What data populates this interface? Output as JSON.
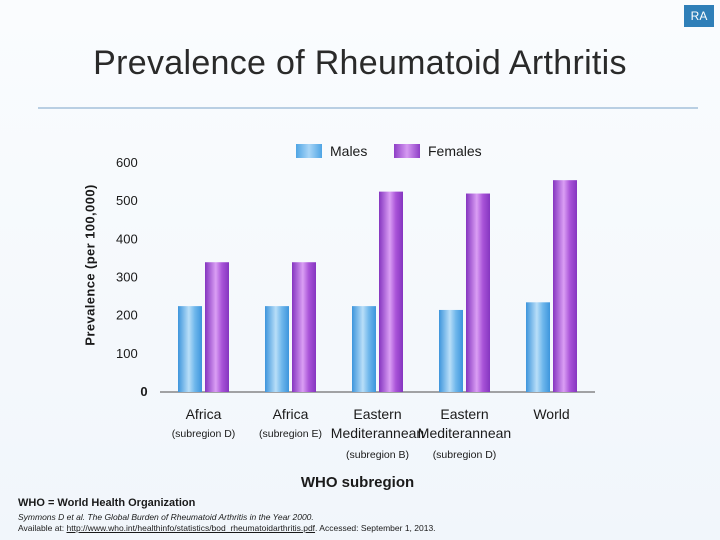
{
  "badge": "RA",
  "title": "Prevalence of Rheumatoid Arthritis",
  "colors": {
    "males": "#5aaee8",
    "females": "#a14fd3"
  },
  "chart_data": {
    "type": "bar",
    "title": "Prevalence of Rheumatoid Arthritis",
    "xlabel": "WHO subregion",
    "ylabel": "Prevalence (per 100,000)",
    "ylim": [
      0,
      600
    ],
    "yticks": [
      0,
      100,
      200,
      300,
      400,
      500,
      600
    ],
    "legend": "top-right",
    "categories": [
      {
        "name": "Africa",
        "sub": "(subregion D)"
      },
      {
        "name": "Africa",
        "sub": "(subregion E)"
      },
      {
        "name": "Eastern Mediterannean",
        "sub": "(subregion B)"
      },
      {
        "name": "Eastern Mediterannean",
        "sub": "(subregion D)"
      },
      {
        "name": "World",
        "sub": ""
      }
    ],
    "series": [
      {
        "name": "Males",
        "values": [
          225,
          225,
          225,
          215,
          235
        ]
      },
      {
        "name": "Females",
        "values": [
          340,
          340,
          525,
          520,
          555
        ]
      }
    ]
  },
  "footnotes": {
    "abbreviation": "WHO = World Health Organization",
    "citation": "Symmons D et al. The Global Burden of Rheumatoid Arthritis in the Year 2000.",
    "available_prefix": "Available at: ",
    "link": "http://www.who.int/healthinfo/statistics/bod_rheumatoidarthritis.pdf",
    "accessed": ". Accessed: September 1, 2013."
  }
}
